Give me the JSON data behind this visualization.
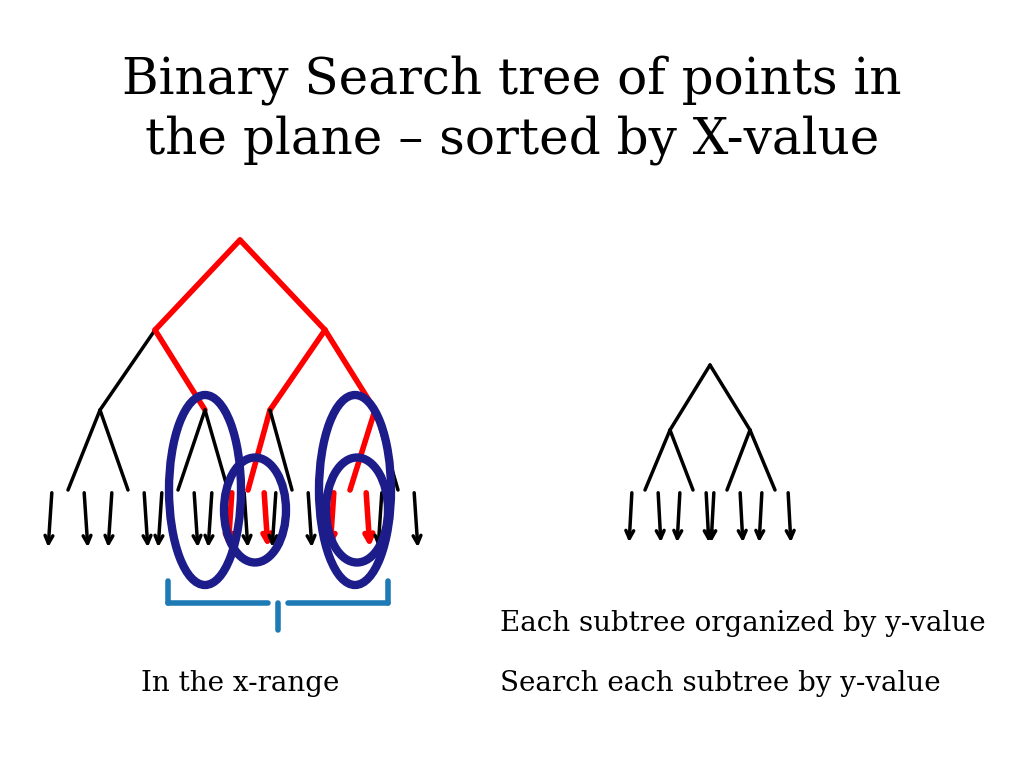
{
  "title_line1": "Binary Search tree of points in",
  "title_line2": "the plane – sorted by X-value",
  "title_fontsize": 36,
  "text_label1": "In the x-range",
  "text_label2": "Each subtree organized by y-value",
  "text_label3": "Search each subtree by y-value",
  "text_fontsize": 20,
  "bg_color": "#ffffff",
  "black": "#000000",
  "red": "#ff0000",
  "blue_dark": "#1c1c8a",
  "blue_light": "#1e7ab5"
}
